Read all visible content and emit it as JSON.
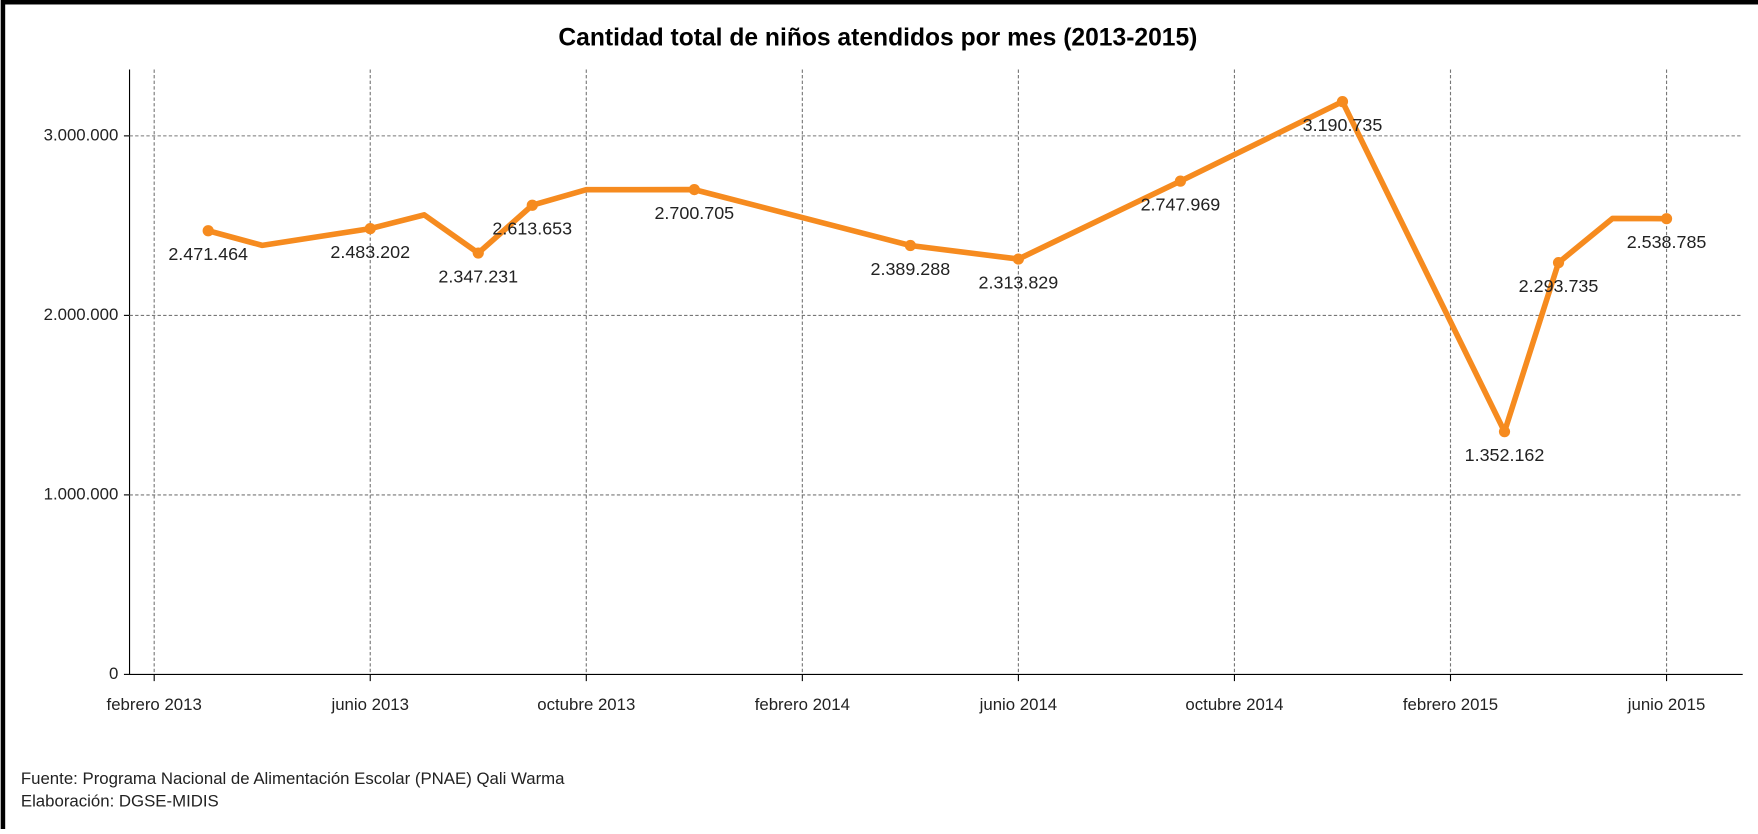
{
  "chart_data": {
    "type": "line",
    "title": "Cantidad total de niños atendidos por mes (2013-2015)",
    "x": [
      "2013-03",
      "2013-04",
      "2013-06",
      "2013-07",
      "2013-08",
      "2013-09",
      "2013-10",
      "2013-12",
      "2014-04",
      "2014-06",
      "2014-09",
      "2014-12",
      "2015-03",
      "2015-04",
      "2015-05",
      "2015-06"
    ],
    "series": [
      {
        "name": "Niños atendidos",
        "color": "#f68b1f",
        "values": [
          2471464,
          2390000,
          2483202,
          2560000,
          2347231,
          2613653,
          2700000,
          2700705,
          2389288,
          2313829,
          2747969,
          3190735,
          1352162,
          2293735,
          2540000,
          2538785
        ],
        "value_labels": [
          "2.471.464",
          null,
          "2.483.202",
          null,
          "2.347.231",
          "2.613.653",
          null,
          "2.700.705",
          "2.389.288",
          "2.313.829",
          "2.747.969",
          "3.190.735",
          "1.352.162",
          "2.293.735",
          null,
          "2.538.785"
        ]
      }
    ],
    "ylim": [
      0,
      3370000
    ],
    "yticks": [
      0,
      {
        "value": 1000000,
        "label": "1.000.000"
      },
      {
        "value": 2000000,
        "label": "2.000.000"
      },
      {
        "value": 3000000,
        "label": "3.000.000"
      }
    ],
    "xticks": [
      {
        "value": "2013-02",
        "label": "febrero 2013"
      },
      {
        "value": "2013-06",
        "label": "junio 2013"
      },
      {
        "value": "2013-10",
        "label": "octubre 2013"
      },
      {
        "value": "2014-02",
        "label": "febrero 2014"
      },
      {
        "value": "2014-06",
        "label": "junio 2014"
      },
      {
        "value": "2014-10",
        "label": "octubre 2014"
      },
      {
        "value": "2015-02",
        "label": "febrero 2015"
      },
      {
        "value": "2015-06",
        "label": "junio 2015"
      }
    ],
    "grid": true,
    "notes": [
      "Fuente: Programa Nacional de Alimentación Escolar (PNAE) Qali Warma",
      "Elaboración: DGSE-MIDIS"
    ]
  }
}
